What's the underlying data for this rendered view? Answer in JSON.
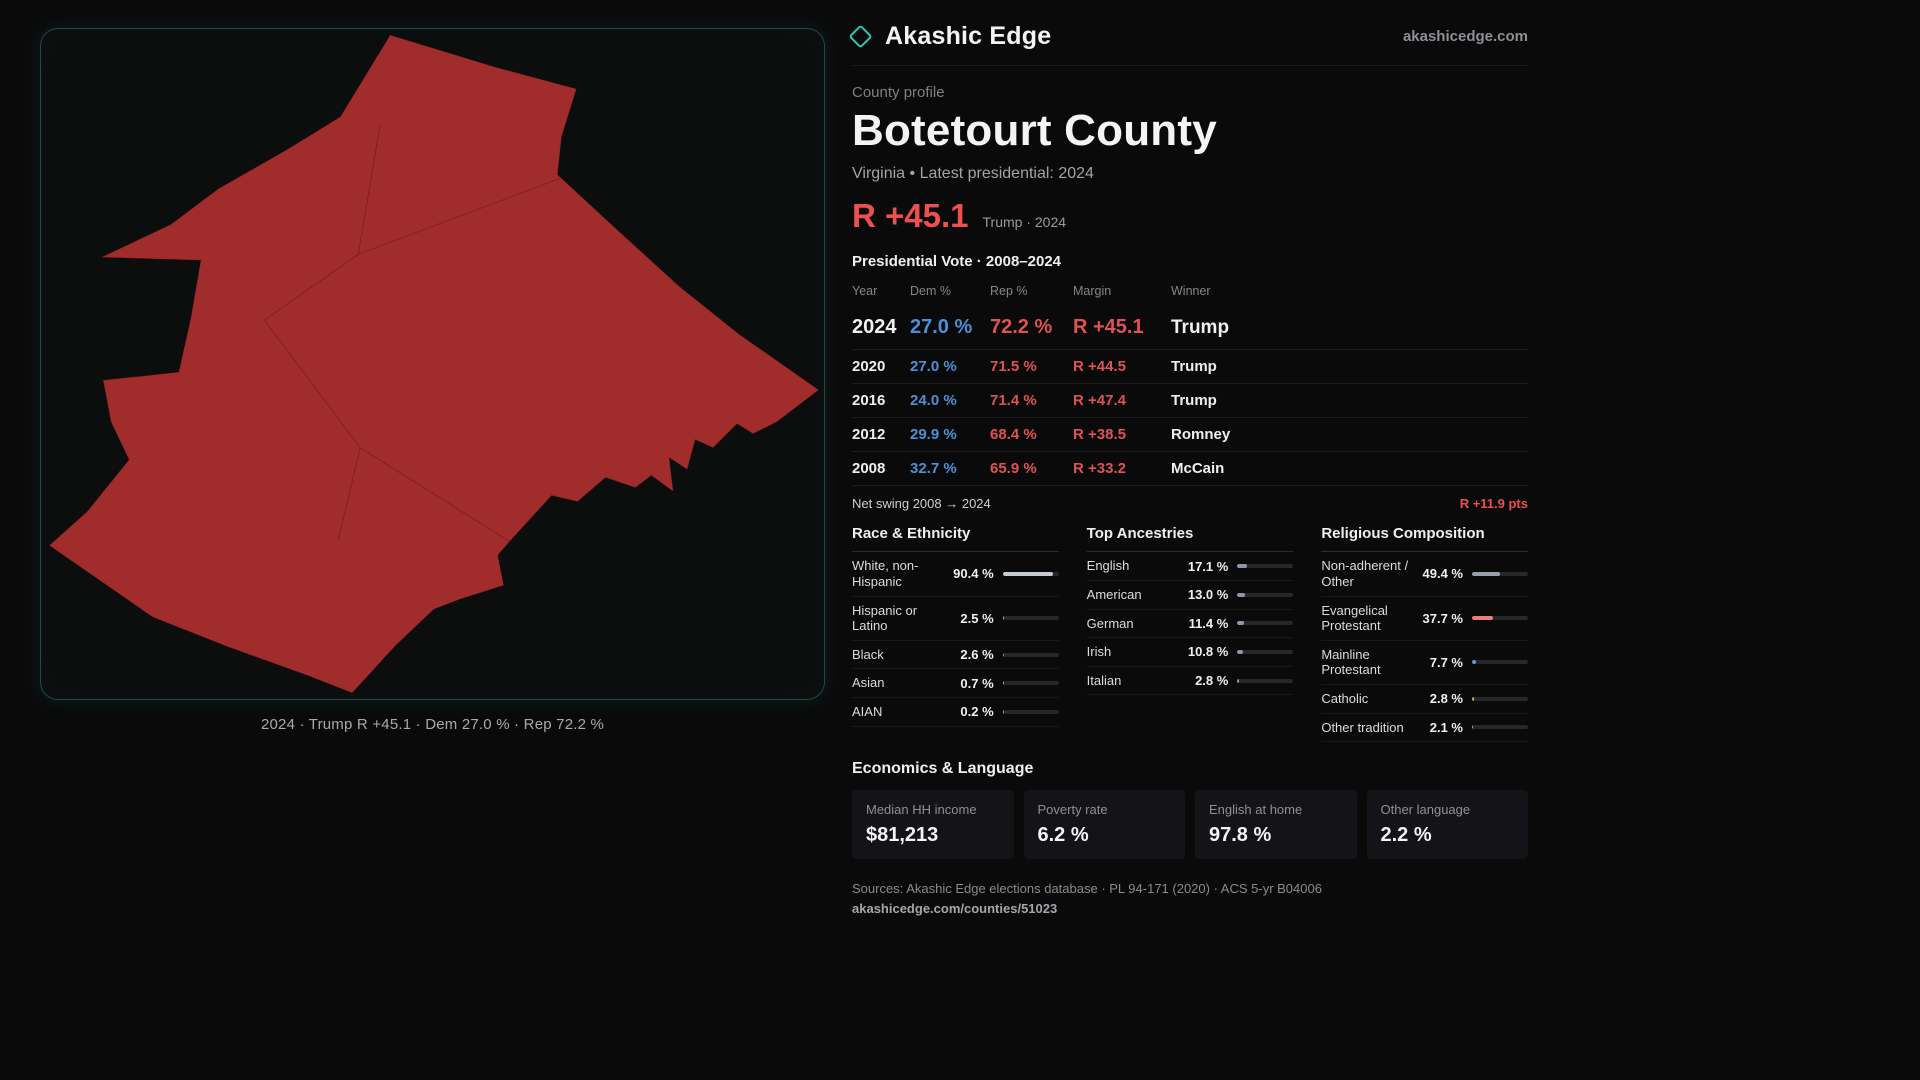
{
  "brand": {
    "name": "Akashic Edge",
    "domain": "akashicedge.com"
  },
  "profile": {
    "kicker": "County profile",
    "title": "Botetourt County",
    "subtitle": "Virginia • Latest presidential: 2024",
    "headline_margin": "R +45.1",
    "headline_note": "Trump · 2024"
  },
  "map": {
    "caption": "2024 · Trump R +45.1 · Dem 27.0 % · Rep 72.2 %",
    "fill_color": "#a02c2c"
  },
  "vote_table": {
    "title": "Presidential Vote · 2008–2024",
    "columns": [
      "Year",
      "Dem %",
      "Rep %",
      "Margin",
      "Winner"
    ],
    "rows": [
      {
        "year": "2024",
        "dem": "27.0 %",
        "rep": "72.2 %",
        "margin": "R +45.1",
        "winner": "Trump"
      },
      {
        "year": "2020",
        "dem": "27.0 %",
        "rep": "71.5 %",
        "margin": "R +44.5",
        "winner": "Trump"
      },
      {
        "year": "2016",
        "dem": "24.0 %",
        "rep": "71.4 %",
        "margin": "R +47.4",
        "winner": "Trump"
      },
      {
        "year": "2012",
        "dem": "29.9 %",
        "rep": "68.4 %",
        "margin": "R +38.5",
        "winner": "Romney"
      },
      {
        "year": "2008",
        "dem": "32.7 %",
        "rep": "65.9 %",
        "margin": "R +33.2",
        "winner": "McCain"
      }
    ],
    "net_swing_label": "Net swing 2008 → 2024",
    "net_swing_value": "R +11.9 pts"
  },
  "demographics": [
    {
      "title": "Race & Ethnicity",
      "rows": [
        {
          "label": "White, non-Hispanic",
          "value": "90.4 %",
          "pct": 90.4,
          "color": "#c6cad2"
        },
        {
          "label": "Hispanic or Latino",
          "value": "2.5 %",
          "pct": 2.5,
          "color": "#e0a23f"
        },
        {
          "label": "Black",
          "value": "2.6 %",
          "pct": 2.6,
          "color": "#6f7de0"
        },
        {
          "label": "Asian",
          "value": "0.7 %",
          "pct": 0.7,
          "color": "#9aa0ab"
        },
        {
          "label": "AIAN",
          "value": "0.2 %",
          "pct": 0.2,
          "color": "#9aa0ab"
        }
      ]
    },
    {
      "title": "Top Ancestries",
      "rows": [
        {
          "label": "English",
          "value": "17.1 %",
          "pct": 17.1,
          "color": "#8e98a9"
        },
        {
          "label": "American",
          "value": "13.0 %",
          "pct": 13.0,
          "color": "#8e98a9"
        },
        {
          "label": "German",
          "value": "11.4 %",
          "pct": 11.4,
          "color": "#8e98a9"
        },
        {
          "label": "Irish",
          "value": "10.8 %",
          "pct": 10.8,
          "color": "#8e98a9"
        },
        {
          "label": "Italian",
          "value": "2.8 %",
          "pct": 2.8,
          "color": "#8e98a9"
        }
      ]
    },
    {
      "title": "Religious Composition",
      "rows": [
        {
          "label": "Non-adherent / Other",
          "value": "49.4 %",
          "pct": 49.4,
          "color": "#9aa0ab"
        },
        {
          "label": "Evangelical Protestant",
          "value": "37.7 %",
          "pct": 37.7,
          "color": "#e87e7e"
        },
        {
          "label": "Mainline Protestant",
          "value": "7.7 %",
          "pct": 7.7,
          "color": "#5e9ad6"
        },
        {
          "label": "Catholic",
          "value": "2.8 %",
          "pct": 2.8,
          "color": "#d2a63e"
        },
        {
          "label": "Other tradition",
          "value": "2.1 %",
          "pct": 2.1,
          "color": "#9aa0ab"
        }
      ]
    }
  ],
  "economics": {
    "title": "Economics & Language",
    "stats": [
      {
        "label": "Median HH income",
        "value": "$81,213"
      },
      {
        "label": "Poverty rate",
        "value": "6.2 %"
      },
      {
        "label": "English at home",
        "value": "97.8 %"
      },
      {
        "label": "Other language",
        "value": "2.2 %"
      }
    ]
  },
  "footer": {
    "sources": "Sources: Akashic Edge elections database · PL 94-171 (2020) · ACS 5-yr B04006",
    "permalink": "akashicedge.com/counties/51023"
  }
}
